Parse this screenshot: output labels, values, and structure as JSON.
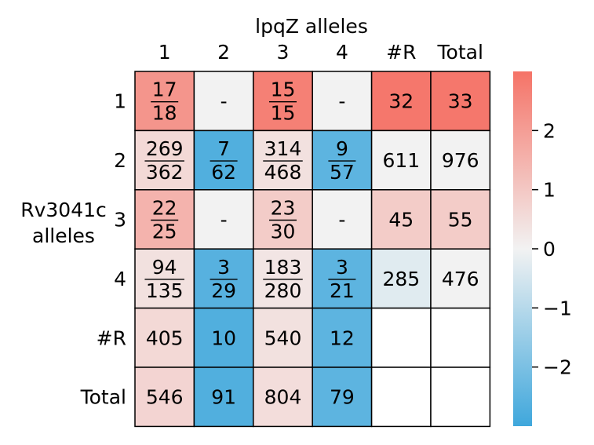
{
  "chart_data": {
    "type": "heatmap",
    "xlabel": "lpqZ alleles",
    "ylabel_lines": [
      "Rv3041c",
      "alleles"
    ],
    "col_labels": [
      "1",
      "2",
      "3",
      "4",
      "#R",
      "Total"
    ],
    "row_labels": [
      "1",
      "2",
      "3",
      "4",
      "#R",
      "Total"
    ],
    "cells": [
      [
        {
          "num": "17",
          "den": "18",
          "v": 2.2
        },
        {
          "text": "-",
          "v": 0
        },
        {
          "num": "15",
          "den": "15",
          "v": 2.7
        },
        {
          "text": "-",
          "v": 0
        },
        {
          "text": "32",
          "v": 2.9
        },
        {
          "text": "33",
          "v": 2.9
        }
      ],
      [
        {
          "num": "269",
          "den": "362",
          "v": 0.6
        },
        {
          "num": "7",
          "den": "62",
          "v": -2.7
        },
        {
          "num": "314",
          "den": "468",
          "v": 0.4
        },
        {
          "num": "9",
          "den": "57",
          "v": -2.5
        },
        {
          "text": "611",
          "v": 0
        },
        {
          "text": "976",
          "v": 0
        }
      ],
      [
        {
          "num": "22",
          "den": "25",
          "v": 1.5
        },
        {
          "text": "-",
          "v": 0
        },
        {
          "num": "23",
          "den": "30",
          "v": 0.9
        },
        {
          "text": "-",
          "v": 0
        },
        {
          "text": "45",
          "v": 0.9
        },
        {
          "text": "55",
          "v": 0.9
        }
      ],
      [
        {
          "num": "94",
          "den": "135",
          "v": 0.4
        },
        {
          "num": "3",
          "den": "29",
          "v": -2.6
        },
        {
          "num": "183",
          "den": "280",
          "v": 0.3
        },
        {
          "num": "3",
          "den": "21",
          "v": -2.5
        },
        {
          "text": "285",
          "v": -0.3
        },
        {
          "text": "476",
          "v": 0
        }
      ],
      [
        {
          "text": "405",
          "v": 0.6
        },
        {
          "text": "10",
          "v": -2.7
        },
        {
          "text": "540",
          "v": 0.4
        },
        {
          "text": "12",
          "v": -2.5
        },
        {
          "text": "",
          "v": null
        },
        {
          "text": "",
          "v": null
        }
      ],
      [
        {
          "text": "546",
          "v": 0.7
        },
        {
          "text": "91",
          "v": -2.7
        },
        {
          "text": "804",
          "v": 0.5
        },
        {
          "text": "79",
          "v": -2.5
        },
        {
          "text": "",
          "v": null
        },
        {
          "text": "",
          "v": null
        }
      ]
    ],
    "colorbar": {
      "range": [
        -3,
        3
      ],
      "ticks": [
        2,
        1,
        0,
        -1,
        -2
      ],
      "tick_labels": [
        "2",
        "1",
        "0",
        "−1",
        "−2"
      ],
      "colors": {
        "negative": "#3fa7dc",
        "neutral": "#f2f2f2",
        "positive": "#f57367"
      }
    }
  }
}
